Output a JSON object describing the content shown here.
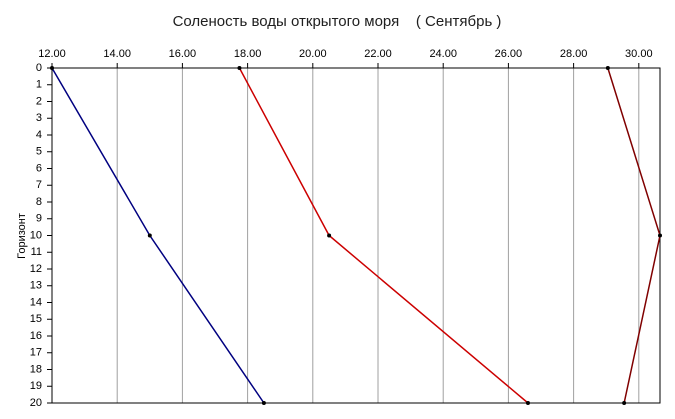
{
  "chart_data": {
    "type": "line",
    "title": "Соленость воды открытого моря    ( Сентябрь )",
    "y_label": "Горизонт",
    "y": [
      0,
      10,
      20
    ],
    "series": [
      {
        "color": "#000080",
        "values": [
          12.0,
          15.0,
          18.5
        ]
      },
      {
        "color": "#cc0000",
        "values": [
          17.75,
          20.5,
          26.6
        ]
      },
      {
        "color": "#800000",
        "values": [
          29.05,
          30.65,
          29.55
        ]
      }
    ],
    "xlim": [
      12,
      30.65
    ],
    "xticks": [
      {
        "value": 12,
        "label": "12.00"
      },
      {
        "value": 14,
        "label": "14.00"
      },
      {
        "value": 16,
        "label": "16.00"
      },
      {
        "value": 18,
        "label": "18.00"
      },
      {
        "value": 20,
        "label": "20.00"
      },
      {
        "value": 22,
        "label": "22.00"
      },
      {
        "value": 24,
        "label": "24.00"
      },
      {
        "value": 26,
        "label": "26.00"
      },
      {
        "value": 28,
        "label": "28.00"
      },
      {
        "value": 30,
        "label": "30.00"
      }
    ],
    "ylim": [
      0,
      20
    ],
    "yticks": [
      0,
      1,
      2,
      3,
      4,
      5,
      6,
      7,
      8,
      9,
      10,
      11,
      12,
      13,
      14,
      15,
      16,
      17,
      18,
      19,
      20
    ],
    "y_inverted": true,
    "grid": true
  }
}
